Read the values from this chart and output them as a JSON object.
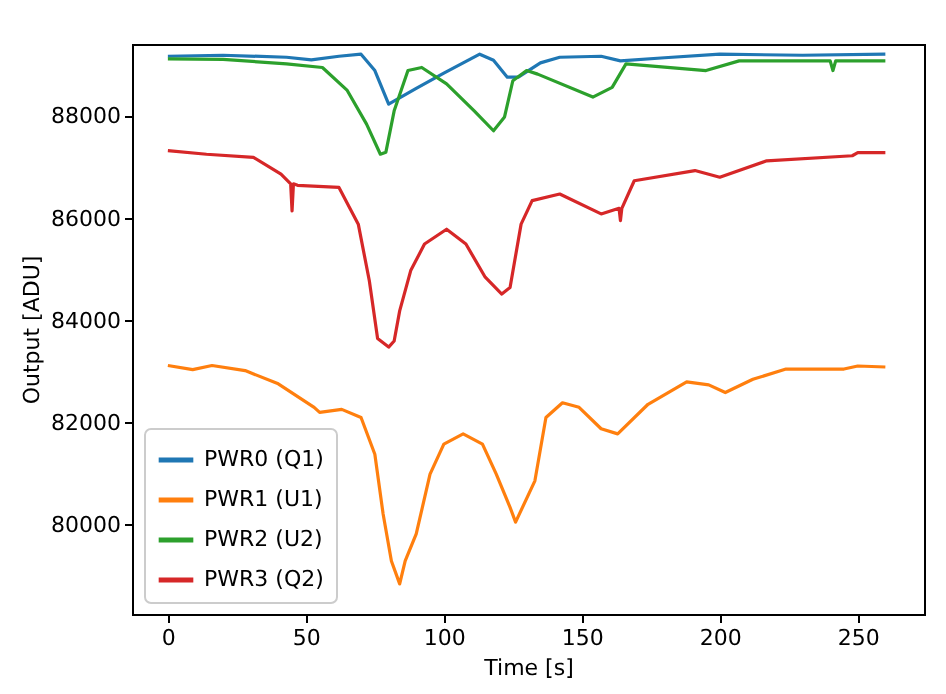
{
  "chart_data": {
    "type": "line",
    "xlabel": "Time [s]",
    "ylabel": "Output [ADU]",
    "xlim": [
      -13,
      274
    ],
    "ylim": [
      78250,
      89420
    ],
    "xticks": [
      0,
      50,
      100,
      150,
      200,
      250
    ],
    "yticks": [
      80000,
      82000,
      84000,
      86000,
      88000
    ],
    "grid": false,
    "legend": "bottom left",
    "marker": "none",
    "line_style": "solid",
    "series": [
      {
        "name": "PWR0 (Q1)",
        "color": "#1f77b4",
        "x": [
          0,
          20,
          43,
          52,
          62,
          70,
          75,
          80,
          90,
          100,
          113,
          118,
          123,
          127,
          135,
          142,
          157,
          164,
          180,
          200,
          230,
          260
        ],
        "values": [
          89180,
          89200,
          89160,
          89110,
          89180,
          89220,
          88900,
          88240,
          88550,
          88850,
          89220,
          89100,
          88770,
          88770,
          89050,
          89160,
          89180,
          89090,
          89150,
          89220,
          89200,
          89220
        ]
      },
      {
        "name": "PWR1 (U1)",
        "color": "#ff7f0e",
        "x": [
          0,
          9,
          16,
          28,
          40,
          53,
          55,
          63,
          70,
          75,
          78,
          81,
          84,
          86,
          90,
          95,
          100,
          107,
          114,
          119,
          124,
          126,
          133,
          137,
          143,
          149,
          157,
          163,
          174,
          188,
          196,
          202,
          212,
          224,
          245,
          250,
          260
        ],
        "values": [
          83120,
          83040,
          83120,
          83020,
          82760,
          82300,
          82200,
          82260,
          82100,
          81380,
          80210,
          79290,
          78840,
          79290,
          79820,
          80990,
          81580,
          81780,
          81580,
          80990,
          80340,
          80050,
          80860,
          82100,
          82390,
          82300,
          81880,
          81780,
          82360,
          82800,
          82740,
          82590,
          82850,
          83050,
          83050,
          83110,
          83090
        ]
      },
      {
        "name": "PWR2 (U2)",
        "color": "#2ca02c",
        "x": [
          0,
          20,
          43,
          56,
          65,
          72,
          77,
          79,
          82,
          87,
          92,
          101,
          111,
          118,
          122,
          125,
          130,
          134,
          154,
          161,
          166,
          195,
          207,
          230,
          240,
          241,
          242,
          260
        ],
        "values": [
          89130,
          89120,
          89030,
          88960,
          88510,
          87850,
          87260,
          87300,
          88110,
          88900,
          88960,
          88640,
          88110,
          87720,
          87990,
          88700,
          88900,
          88830,
          88380,
          88570,
          89030,
          88900,
          89090,
          89090,
          89090,
          88900,
          89090,
          89090
        ]
      },
      {
        "name": "PWR3 (Q2)",
        "color": "#d62728",
        "x": [
          0,
          14,
          31,
          41,
          44.5,
          45,
          45.5,
          47,
          62,
          69,
          73,
          76,
          80,
          82,
          84,
          88,
          93,
          101,
          108,
          115,
          121,
          124,
          128,
          132,
          142,
          157,
          163.5,
          164,
          164.5,
          169,
          191,
          200,
          217,
          248,
          250,
          260
        ],
        "values": [
          87330,
          87260,
          87200,
          86870,
          86680,
          86150,
          86680,
          86650,
          86610,
          85890,
          84780,
          83650,
          83480,
          83600,
          84190,
          84980,
          85500,
          85790,
          85500,
          84850,
          84520,
          84650,
          85890,
          86350,
          86480,
          86090,
          86200,
          85960,
          86200,
          86740,
          86940,
          86810,
          87130,
          87230,
          87290,
          87290
        ]
      }
    ]
  }
}
